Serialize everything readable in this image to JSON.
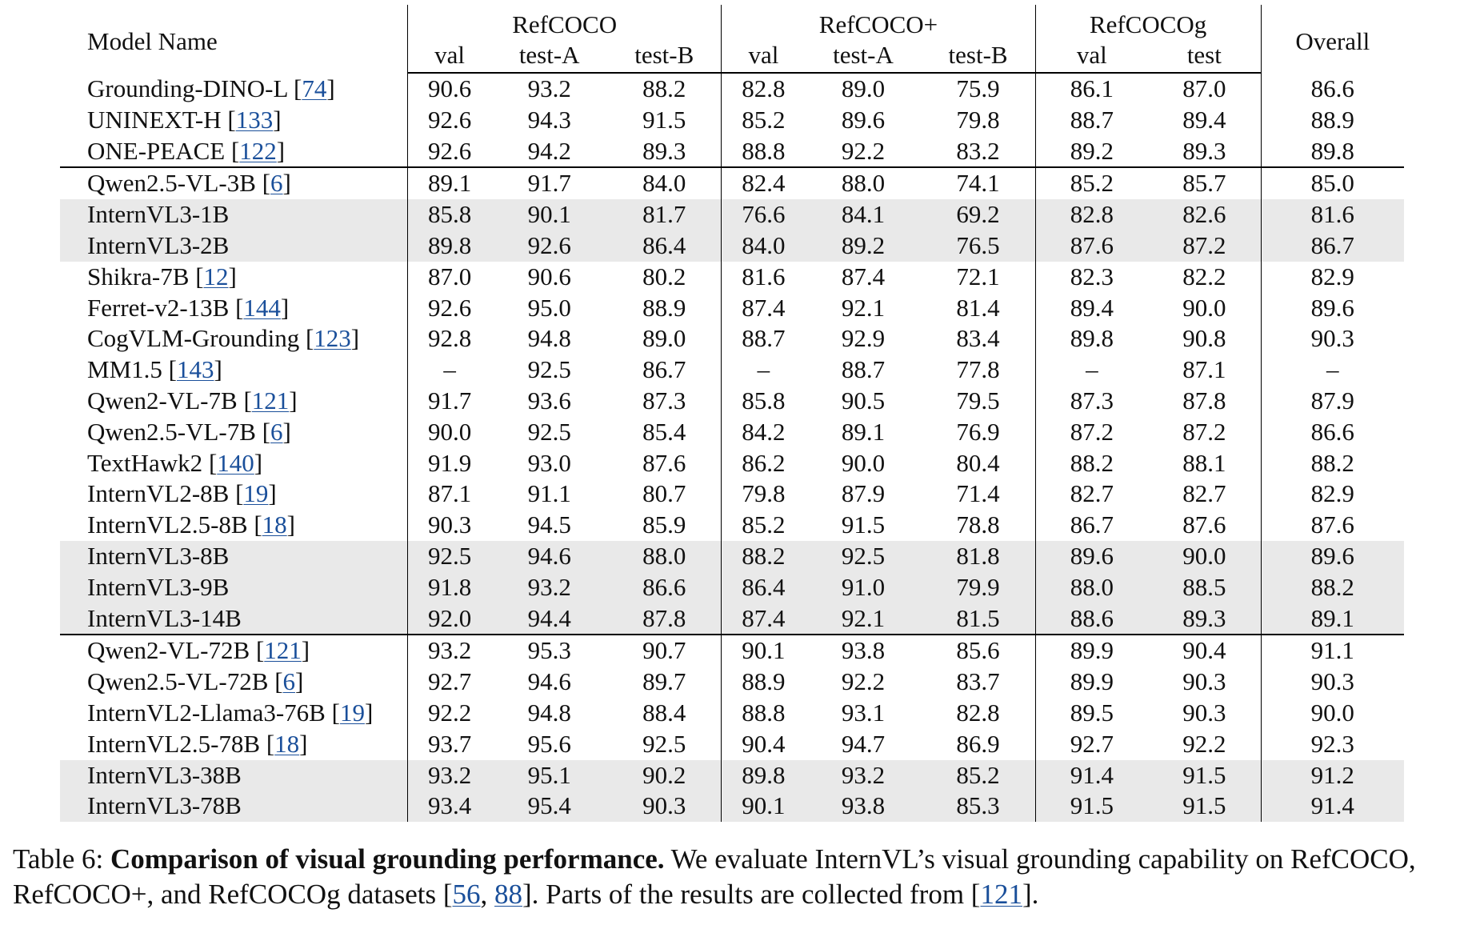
{
  "table": {
    "header": {
      "model_name": "Model Name",
      "groups": [
        "RefCOCO",
        "RefCOCO+",
        "RefCOCOg"
      ],
      "overall": "Overall",
      "subcols": [
        "val",
        "test-A",
        "test-B",
        "val",
        "test-A",
        "test-B",
        "val",
        "test"
      ]
    },
    "rows": [
      {
        "name": "Grounding-DINO-L",
        "ref": "74",
        "vals": [
          "90.6",
          "93.2",
          "88.2",
          "82.8",
          "89.0",
          "75.9",
          "86.1",
          "87.0",
          "86.6"
        ]
      },
      {
        "name": "UNINEXT-H",
        "ref": "133",
        "vals": [
          "92.6",
          "94.3",
          "91.5",
          "85.2",
          "89.6",
          "79.8",
          "88.7",
          "89.4",
          "88.9"
        ]
      },
      {
        "name": "ONE-PEACE",
        "ref": "122",
        "vals": [
          "92.6",
          "94.2",
          "89.3",
          "88.8",
          "92.2",
          "83.2",
          "89.2",
          "89.3",
          "89.8"
        ]
      },
      {
        "name": "Qwen2.5-VL-3B",
        "ref": "6",
        "vals": [
          "89.1",
          "91.7",
          "84.0",
          "82.4",
          "88.0",
          "74.1",
          "85.2",
          "85.7",
          "85.0"
        ]
      },
      {
        "name": "InternVL3-1B",
        "ref": "",
        "vals": [
          "85.8",
          "90.1",
          "81.7",
          "76.6",
          "84.1",
          "69.2",
          "82.8",
          "82.6",
          "81.6"
        ]
      },
      {
        "name": "InternVL3-2B",
        "ref": "",
        "vals": [
          "89.8",
          "92.6",
          "86.4",
          "84.0",
          "89.2",
          "76.5",
          "87.6",
          "87.2",
          "86.7"
        ]
      },
      {
        "name": "Shikra-7B",
        "ref": "12",
        "vals": [
          "87.0",
          "90.6",
          "80.2",
          "81.6",
          "87.4",
          "72.1",
          "82.3",
          "82.2",
          "82.9"
        ]
      },
      {
        "name": "Ferret-v2-13B",
        "ref": "144",
        "vals": [
          "92.6",
          "95.0",
          "88.9",
          "87.4",
          "92.1",
          "81.4",
          "89.4",
          "90.0",
          "89.6"
        ]
      },
      {
        "name": "CogVLM-Grounding",
        "ref": "123",
        "vals": [
          "92.8",
          "94.8",
          "89.0",
          "88.7",
          "92.9",
          "83.4",
          "89.8",
          "90.8",
          "90.3"
        ]
      },
      {
        "name": "MM1.5",
        "ref": "143",
        "vals": [
          "–",
          "92.5",
          "86.7",
          "–",
          "88.7",
          "77.8",
          "–",
          "87.1",
          "–"
        ]
      },
      {
        "name": "Qwen2-VL-7B",
        "ref": "121",
        "vals": [
          "91.7",
          "93.6",
          "87.3",
          "85.8",
          "90.5",
          "79.5",
          "87.3",
          "87.8",
          "87.9"
        ]
      },
      {
        "name": "Qwen2.5-VL-7B",
        "ref": "6",
        "vals": [
          "90.0",
          "92.5",
          "85.4",
          "84.2",
          "89.1",
          "76.9",
          "87.2",
          "87.2",
          "86.6"
        ]
      },
      {
        "name": "TextHawk2",
        "ref": "140",
        "vals": [
          "91.9",
          "93.0",
          "87.6",
          "86.2",
          "90.0",
          "80.4",
          "88.2",
          "88.1",
          "88.2"
        ]
      },
      {
        "name": "InternVL2-8B",
        "ref": "19",
        "vals": [
          "87.1",
          "91.1",
          "80.7",
          "79.8",
          "87.9",
          "71.4",
          "82.7",
          "82.7",
          "82.9"
        ]
      },
      {
        "name": "InternVL2.5-8B",
        "ref": "18",
        "vals": [
          "90.3",
          "94.5",
          "85.9",
          "85.2",
          "91.5",
          "78.8",
          "86.7",
          "87.6",
          "87.6"
        ]
      },
      {
        "name": "InternVL3-8B",
        "ref": "",
        "vals": [
          "92.5",
          "94.6",
          "88.0",
          "88.2",
          "92.5",
          "81.8",
          "89.6",
          "90.0",
          "89.6"
        ]
      },
      {
        "name": "InternVL3-9B",
        "ref": "",
        "vals": [
          "91.8",
          "93.2",
          "86.6",
          "86.4",
          "91.0",
          "79.9",
          "88.0",
          "88.5",
          "88.2"
        ]
      },
      {
        "name": "InternVL3-14B",
        "ref": "",
        "vals": [
          "92.0",
          "94.4",
          "87.8",
          "87.4",
          "92.1",
          "81.5",
          "88.6",
          "89.3",
          "89.1"
        ]
      },
      {
        "name": "Qwen2-VL-72B",
        "ref": "121",
        "vals": [
          "93.2",
          "95.3",
          "90.7",
          "90.1",
          "93.8",
          "85.6",
          "89.9",
          "90.4",
          "91.1"
        ]
      },
      {
        "name": "Qwen2.5-VL-72B",
        "ref": "6",
        "vals": [
          "92.7",
          "94.6",
          "89.7",
          "88.9",
          "92.2",
          "83.7",
          "89.9",
          "90.3",
          "90.3"
        ]
      },
      {
        "name": "InternVL2-Llama3-76B",
        "ref": "19",
        "vals": [
          "92.2",
          "94.8",
          "88.4",
          "88.8",
          "93.1",
          "82.8",
          "89.5",
          "90.3",
          "90.0"
        ]
      },
      {
        "name": "InternVL2.5-78B",
        "ref": "18",
        "vals": [
          "93.7",
          "95.6",
          "92.5",
          "90.4",
          "94.7",
          "86.9",
          "92.7",
          "92.2",
          "92.3"
        ]
      },
      {
        "name": "InternVL3-38B",
        "ref": "",
        "vals": [
          "93.2",
          "95.1",
          "90.2",
          "89.8",
          "93.2",
          "85.2",
          "91.4",
          "91.5",
          "91.2"
        ]
      },
      {
        "name": "InternVL3-78B",
        "ref": "",
        "vals": [
          "93.4",
          "95.4",
          "90.3",
          "90.1",
          "93.8",
          "85.3",
          "91.5",
          "91.5",
          "91.4"
        ]
      }
    ]
  },
  "caption": {
    "label": "Table 6:",
    "bold": "Comparison of visual grounding performance.",
    "text1": "We evaluate InternVL’s visual grounding capability on RefCOCO, RefCOCO+, and RefCOCOg datasets [",
    "ref1": "56",
    "sep": ", ",
    "ref2": "88",
    "text2": "]. Parts of the results are collected from [",
    "ref3": "121",
    "text3": "]."
  }
}
